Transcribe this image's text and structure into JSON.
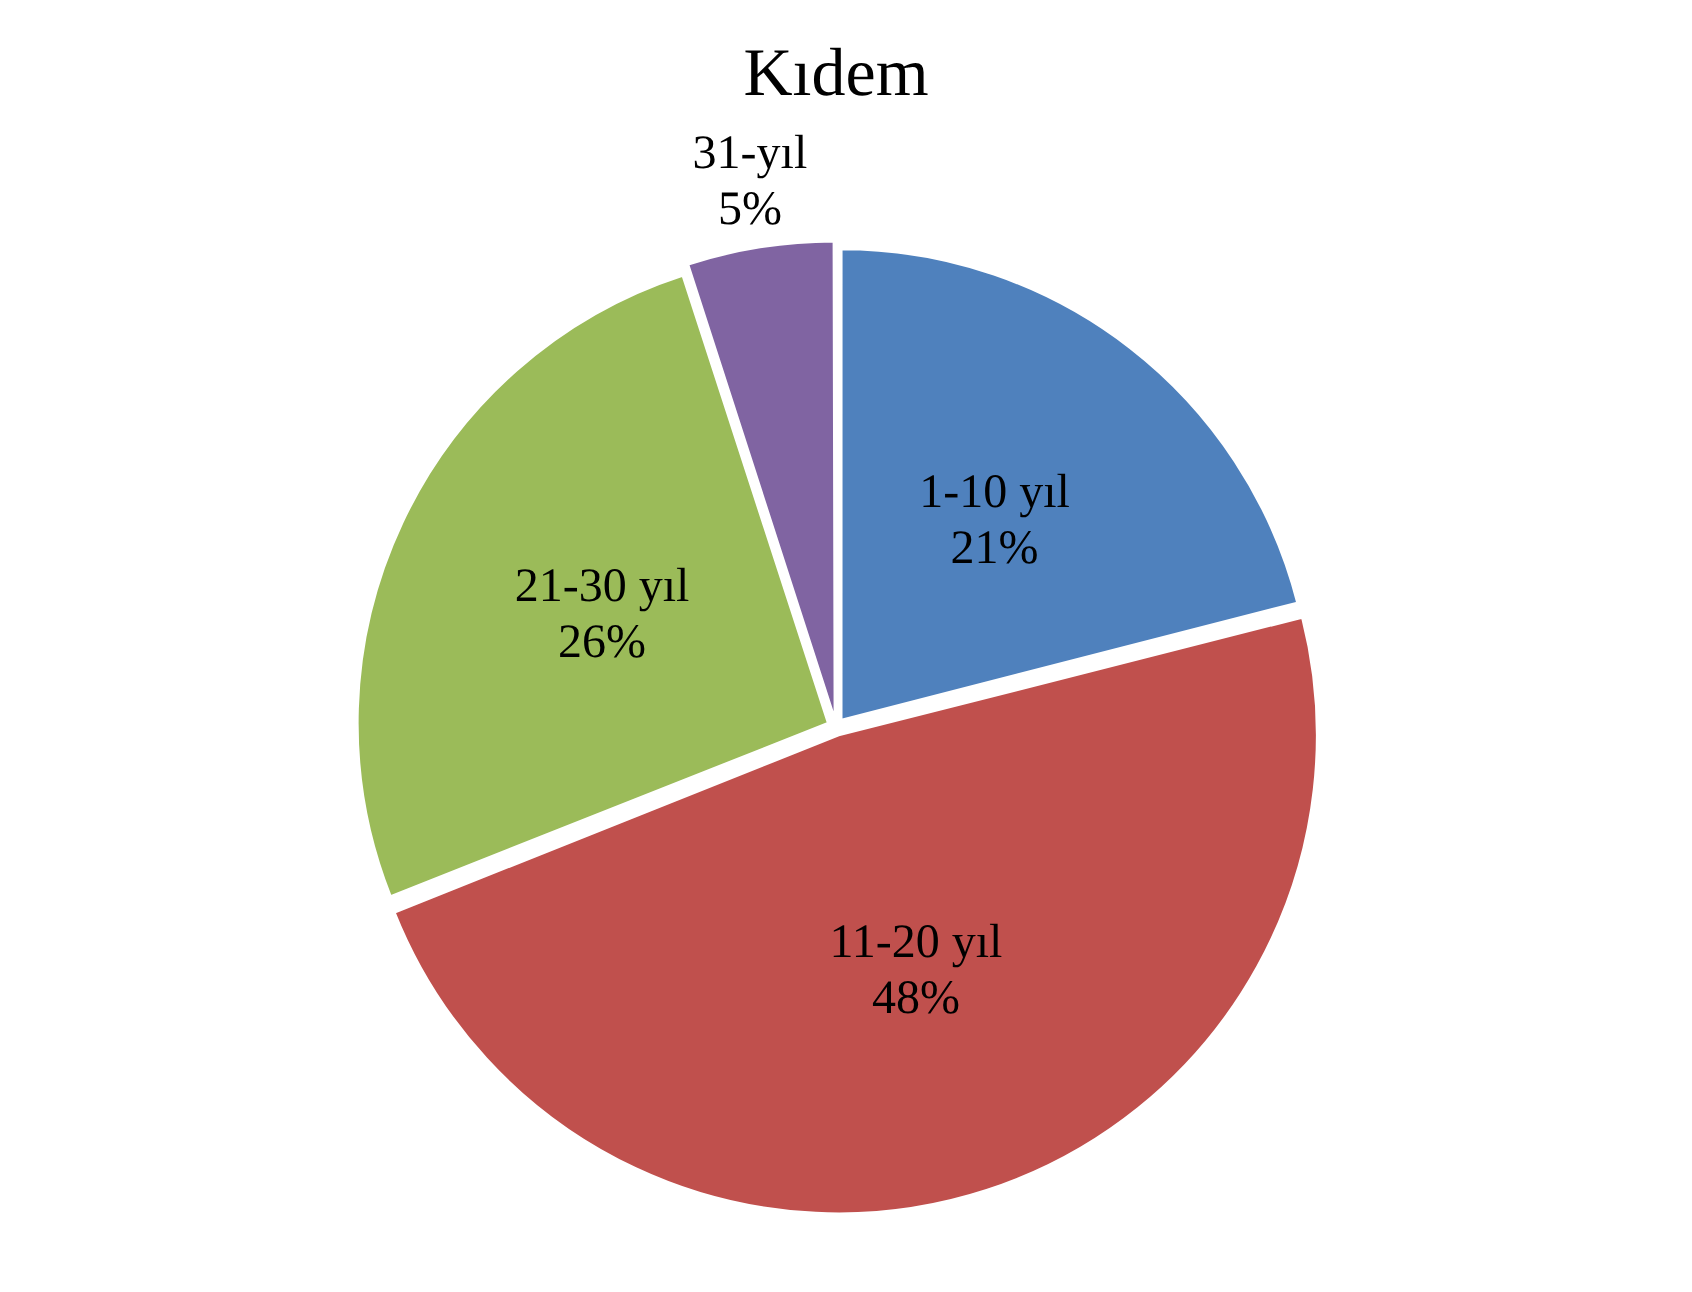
{
  "chart_data": {
    "type": "pie",
    "title": "Kıdem",
    "categories": [
      "1-10 yıl",
      "11-20 yıl",
      "21-30 yıl",
      "31-yıl"
    ],
    "values": [
      21,
      48,
      26,
      5
    ],
    "value_labels": [
      "21%",
      "48%",
      "26%",
      "5%"
    ],
    "colors": [
      "#4f81bd",
      "#c0504d",
      "#9bbb59",
      "#8064a2"
    ],
    "legend": false
  }
}
